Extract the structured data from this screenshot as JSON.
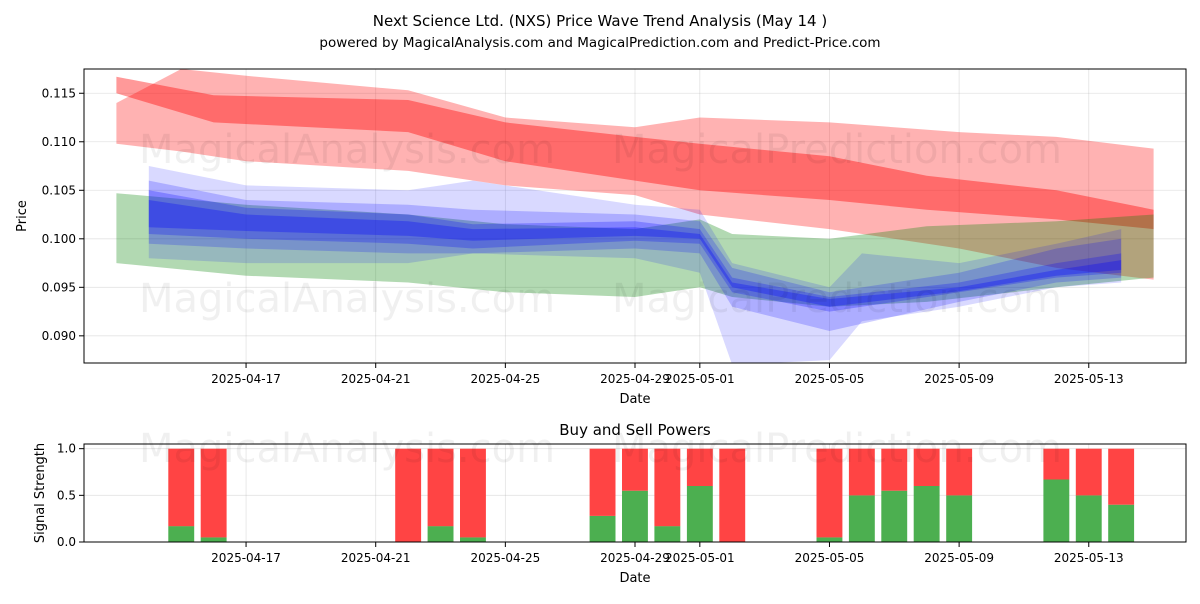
{
  "title": "Next Science Ltd. (NXS) Price Wave Trend Analysis (May 14 )",
  "subtitle": "powered by MagicalAnalysis.com and MagicalPrediction.com and Predict-Price.com",
  "watermarks": [
    "MagicalAnalysis.com",
    "MagicalPrediction.com"
  ],
  "colors": {
    "red_band": "#ff0000",
    "green_band": "#008000",
    "blue_band": "#0000ff",
    "buy": "#4caf50",
    "sell": "#ff4444"
  },
  "chart_data": [
    {
      "type": "area",
      "title": "",
      "xlabel": "Date",
      "ylabel": "Price",
      "grid": true,
      "xlim": [
        "2025-04-12",
        "2025-05-16"
      ],
      "ylim": [
        0.0872,
        0.1175
      ],
      "x_ticks": [
        "2025-04-17",
        "2025-04-21",
        "2025-04-25",
        "2025-04-29",
        "2025-05-01",
        "2025-05-05",
        "2025-05-09",
        "2025-05-13"
      ],
      "y_ticks": [
        0.09,
        0.095,
        0.1,
        0.105,
        0.11,
        0.115
      ],
      "y_tick_labels": [
        "0.090",
        "0.095",
        "0.100",
        "0.105",
        "0.110",
        "0.115"
      ],
      "bands": [
        {
          "color": "red",
          "opacity": 0.3,
          "x": [
            "2025-04-13",
            "2025-04-15",
            "2025-04-17",
            "2025-04-22",
            "2025-04-25",
            "2025-04-29",
            "2025-05-01",
            "2025-05-05",
            "2025-05-09",
            "2025-05-12",
            "2025-05-15"
          ],
          "upper": [
            0.114,
            0.1175,
            0.1168,
            0.1153,
            0.1125,
            0.1115,
            0.1125,
            0.112,
            0.111,
            0.1105,
            0.1093
          ],
          "lower": [
            0.1098,
            0.109,
            0.108,
            0.107,
            0.1055,
            0.1045,
            0.1025,
            0.101,
            0.099,
            0.097,
            0.0958
          ]
        },
        {
          "color": "red",
          "opacity": 0.4,
          "x": [
            "2025-04-13",
            "2025-04-16",
            "2025-04-22",
            "2025-04-25",
            "2025-04-29",
            "2025-05-01",
            "2025-05-05",
            "2025-05-08",
            "2025-05-12",
            "2025-05-15"
          ],
          "upper": [
            0.1167,
            0.1148,
            0.1143,
            0.112,
            0.1105,
            0.1098,
            0.1085,
            0.1065,
            0.105,
            0.103
          ],
          "lower": [
            0.115,
            0.112,
            0.111,
            0.108,
            0.106,
            0.105,
            0.104,
            0.103,
            0.102,
            0.101
          ]
        },
        {
          "color": "green",
          "opacity": 0.3,
          "x": [
            "2025-04-13",
            "2025-04-17",
            "2025-04-22",
            "2025-04-25",
            "2025-04-29",
            "2025-05-01",
            "2025-05-02",
            "2025-05-05",
            "2025-05-08",
            "2025-05-12",
            "2025-05-15"
          ],
          "upper": [
            0.1047,
            0.1035,
            0.1025,
            0.1015,
            0.101,
            0.102,
            0.1005,
            0.1,
            0.1013,
            0.1018,
            0.1025
          ],
          "lower": [
            0.0975,
            0.0962,
            0.0955,
            0.0945,
            0.094,
            0.095,
            0.094,
            0.093,
            0.0935,
            0.095,
            0.096
          ]
        },
        {
          "color": "blue",
          "opacity": 0.15,
          "x": [
            "2025-04-14",
            "2025-04-17",
            "2025-04-22",
            "2025-04-24",
            "2025-04-29",
            "2025-05-01",
            "2025-05-02",
            "2025-05-05",
            "2025-05-06",
            "2025-05-09",
            "2025-05-12",
            "2025-05-14"
          ],
          "upper": [
            0.1075,
            0.1055,
            0.105,
            0.106,
            0.1035,
            0.103,
            0.0975,
            0.095,
            0.0985,
            0.0975,
            0.0995,
            0.101
          ],
          "lower": [
            0.098,
            0.0975,
            0.0975,
            0.0985,
            0.098,
            0.0965,
            0.087,
            0.0875,
            0.0915,
            0.093,
            0.095,
            0.0955
          ]
        },
        {
          "color": "blue",
          "opacity": 0.2,
          "x": [
            "2025-04-14",
            "2025-04-17",
            "2025-04-22",
            "2025-04-24",
            "2025-04-29",
            "2025-05-01",
            "2025-05-02",
            "2025-05-05",
            "2025-05-09",
            "2025-05-12",
            "2025-05-14"
          ],
          "upper": [
            0.106,
            0.104,
            0.1035,
            0.103,
            0.1025,
            0.1018,
            0.097,
            0.0945,
            0.0965,
            0.099,
            0.1
          ],
          "lower": [
            0.0995,
            0.099,
            0.0985,
            0.0985,
            0.099,
            0.0985,
            0.093,
            0.0905,
            0.0935,
            0.0955,
            0.096
          ]
        },
        {
          "color": "blue",
          "opacity": 0.25,
          "x": [
            "2025-04-14",
            "2025-04-17",
            "2025-04-22",
            "2025-04-24",
            "2025-04-29",
            "2025-05-01",
            "2025-05-02",
            "2025-05-05",
            "2025-05-09",
            "2025-05-12",
            "2025-05-14"
          ],
          "upper": [
            0.105,
            0.1032,
            0.1025,
            0.1015,
            0.1018,
            0.101,
            0.096,
            0.094,
            0.0955,
            0.0975,
            0.0985
          ],
          "lower": [
            0.1005,
            0.1,
            0.0995,
            0.099,
            0.0998,
            0.0995,
            0.0945,
            0.0925,
            0.0945,
            0.096,
            0.0965
          ]
        },
        {
          "color": "blue",
          "opacity": 0.3,
          "x": [
            "2025-04-14",
            "2025-04-17",
            "2025-04-22",
            "2025-04-24",
            "2025-04-29",
            "2025-05-01",
            "2025-05-02",
            "2025-05-05",
            "2025-05-09",
            "2025-05-12",
            "2025-05-14"
          ],
          "upper": [
            0.104,
            0.1025,
            0.1018,
            0.101,
            0.1012,
            0.1005,
            0.0955,
            0.0938,
            0.095,
            0.0968,
            0.0978
          ],
          "lower": [
            0.1012,
            0.1008,
            0.1003,
            0.0998,
            0.1003,
            0.1,
            0.095,
            0.093,
            0.0946,
            0.0962,
            0.0968
          ]
        }
      ]
    },
    {
      "type": "bar",
      "title": "Buy and Sell Powers",
      "xlabel": "Date",
      "ylabel": "Signal Strength",
      "grid": true,
      "stacked": true,
      "xlim": [
        "2025-04-12",
        "2025-05-16"
      ],
      "ylim": [
        0,
        1.05
      ],
      "x_ticks": [
        "2025-04-17",
        "2025-04-21",
        "2025-04-25",
        "2025-04-29",
        "2025-05-01",
        "2025-05-05",
        "2025-05-09",
        "2025-05-13"
      ],
      "y_ticks": [
        0.0,
        0.5,
        1.0
      ],
      "y_tick_labels": [
        "0.0",
        "0.5",
        "1.0"
      ],
      "x": [
        "2025-04-15",
        "2025-04-16",
        "2025-04-22",
        "2025-04-23",
        "2025-04-24",
        "2025-04-28",
        "2025-04-29",
        "2025-04-30",
        "2025-05-01",
        "2025-05-02",
        "2025-05-05",
        "2025-05-06",
        "2025-05-07",
        "2025-05-08",
        "2025-05-09",
        "2025-05-12",
        "2025-05-13",
        "2025-05-14"
      ],
      "series": [
        {
          "color": "green",
          "values": [
            0.17,
            0.05,
            0.0,
            0.17,
            0.05,
            0.28,
            0.55,
            0.17,
            0.6,
            0.0,
            0.05,
            0.5,
            0.55,
            0.6,
            0.5,
            0.67,
            0.5,
            0.4
          ]
        },
        {
          "color": "red",
          "values": [
            0.83,
            0.95,
            1.0,
            0.83,
            0.95,
            0.72,
            0.45,
            0.83,
            0.4,
            1.0,
            0.95,
            0.5,
            0.45,
            0.4,
            0.5,
            0.33,
            0.5,
            0.6
          ]
        }
      ]
    }
  ]
}
